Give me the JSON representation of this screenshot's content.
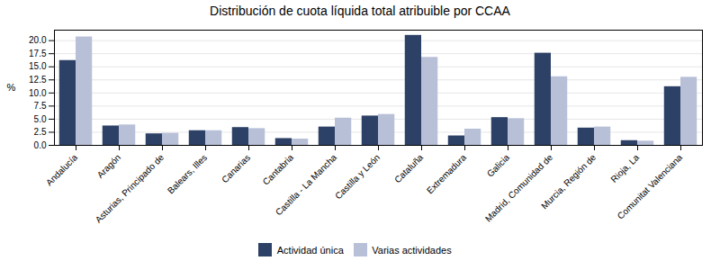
{
  "chart_data": {
    "type": "bar",
    "title": "Distribución de cuota líquida total atribuible por CCAA",
    "categories": [
      "Andalucía",
      "Aragón",
      "Asturias, Principado de",
      "Balears, Illes",
      "Canarias",
      "Cantabria",
      "Castilla - La Mancha",
      "Castilla y León",
      "Cataluña",
      "Extremadura",
      "Galicia",
      "Madrid, Comunidad de",
      "Murcia, Región de",
      "Rioja, La",
      "Comunitat Valenciana"
    ],
    "series": [
      {
        "name": "Actividad única",
        "color": "#2d4166",
        "values": [
          16.2,
          3.7,
          2.2,
          2.8,
          3.4,
          1.3,
          3.5,
          5.6,
          21.0,
          1.8,
          5.3,
          17.6,
          3.3,
          0.9,
          11.2
        ]
      },
      {
        "name": "Varias actividades",
        "color": "#b8c0d8",
        "values": [
          20.7,
          3.9,
          2.3,
          2.8,
          3.2,
          1.2,
          5.2,
          5.9,
          16.8,
          3.1,
          5.1,
          13.1,
          3.5,
          0.8,
          13.0
        ]
      }
    ],
    "ylabel": "%",
    "ylim": [
      0,
      22
    ],
    "yticks": [
      {
        "value": 0.0,
        "label": "0.0"
      },
      2.5,
      {
        "value": 5.0,
        "label": "5.0"
      },
      7.5,
      {
        "value": 10.0,
        "label": "10.0"
      },
      12.5,
      {
        "value": 15.0,
        "label": "15.0"
      },
      17.5,
      {
        "value": 20.0,
        "label": "20.0"
      }
    ],
    "grid": true,
    "legend": "bottom"
  }
}
